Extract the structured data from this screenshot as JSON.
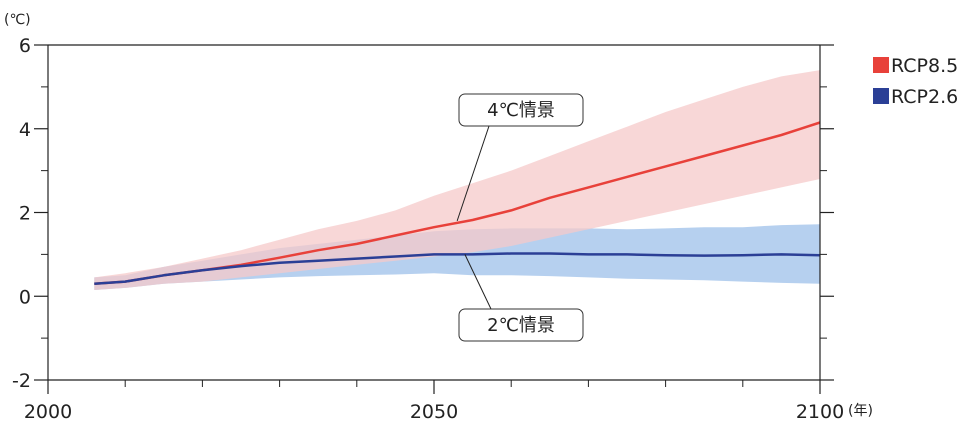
{
  "chart_data": {
    "type": "line",
    "y_unit": "(℃)",
    "x_unit": "(年)",
    "xlim": [
      2000,
      2100
    ],
    "ylim": [
      -2,
      6
    ],
    "x_ticks": [
      2000,
      2050,
      2100
    ],
    "x_tick_labels": [
      "2000",
      "2050",
      "2100"
    ],
    "y_ticks": [
      -2,
      0,
      2,
      4,
      6
    ],
    "y_tick_labels": [
      "-2",
      "0",
      "2",
      "4",
      "6"
    ],
    "legend_position": "right",
    "series": [
      {
        "name": "RCP8.5",
        "color": "#e8413a",
        "band_color": "#f6c9c9",
        "x": [
          2006,
          2010,
          2015,
          2020,
          2025,
          2030,
          2035,
          2040,
          2045,
          2050,
          2055,
          2060,
          2065,
          2070,
          2075,
          2080,
          2085,
          2090,
          2095,
          2100
        ],
        "y": [
          0.3,
          0.35,
          0.5,
          0.62,
          0.75,
          0.92,
          1.1,
          1.25,
          1.45,
          1.65,
          1.82,
          2.05,
          2.35,
          2.6,
          2.85,
          3.1,
          3.35,
          3.6,
          3.85,
          4.15
        ],
        "lower": [
          0.15,
          0.2,
          0.3,
          0.35,
          0.45,
          0.55,
          0.65,
          0.75,
          0.85,
          0.95,
          1.05,
          1.2,
          1.4,
          1.6,
          1.8,
          2.0,
          2.2,
          2.4,
          2.6,
          2.8
        ],
        "upper": [
          0.45,
          0.55,
          0.7,
          0.9,
          1.1,
          1.35,
          1.6,
          1.8,
          2.05,
          2.4,
          2.7,
          3.0,
          3.35,
          3.7,
          4.05,
          4.4,
          4.7,
          5.0,
          5.25,
          5.4
        ]
      },
      {
        "name": "RCP2.6",
        "color": "#2b3f96",
        "band_color": "#a9c8ec",
        "x": [
          2006,
          2010,
          2015,
          2020,
          2025,
          2030,
          2035,
          2040,
          2045,
          2050,
          2055,
          2060,
          2065,
          2070,
          2075,
          2080,
          2085,
          2090,
          2095,
          2100
        ],
        "y": [
          0.3,
          0.35,
          0.5,
          0.62,
          0.72,
          0.8,
          0.85,
          0.9,
          0.95,
          1.0,
          1.0,
          1.02,
          1.02,
          1.0,
          1.0,
          0.98,
          0.97,
          0.98,
          1.0,
          0.98
        ],
        "lower": [
          0.15,
          0.2,
          0.3,
          0.35,
          0.4,
          0.45,
          0.48,
          0.5,
          0.52,
          0.55,
          0.5,
          0.5,
          0.48,
          0.45,
          0.42,
          0.4,
          0.38,
          0.35,
          0.32,
          0.3
        ],
        "upper": [
          0.45,
          0.5,
          0.7,
          0.85,
          1.0,
          1.15,
          1.25,
          1.35,
          1.45,
          1.55,
          1.6,
          1.62,
          1.62,
          1.62,
          1.6,
          1.62,
          1.65,
          1.65,
          1.7,
          1.72
        ]
      }
    ],
    "annotations": [
      {
        "text": "4℃情景",
        "series": "RCP8.5",
        "point": [
          2053,
          1.8
        ]
      },
      {
        "text": "2℃情景",
        "series": "RCP2.6",
        "point": [
          2054,
          1.0
        ]
      }
    ]
  }
}
